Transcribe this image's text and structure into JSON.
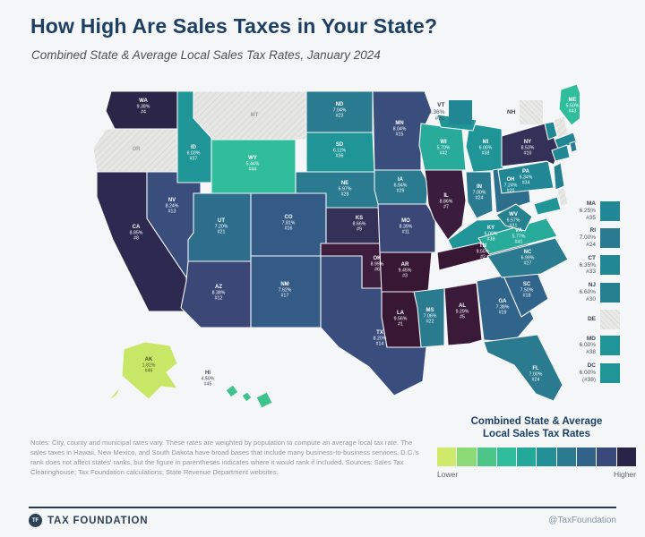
{
  "header": {
    "title": "How High Are Sales Taxes in Your State?",
    "subtitle": "Combined State & Average Local Sales Tax Rates, January 2024"
  },
  "map": {
    "states": [
      {
        "abbr": "WA",
        "rate": "9.38%",
        "rank": "#4",
        "fill": "#2b2547"
      },
      {
        "abbr": "OR",
        "rate": "",
        "rank": "",
        "fill": "",
        "no_tax": true
      },
      {
        "abbr": "CA",
        "rate": "8.85%",
        "rank": "#8",
        "fill": "#2e2950"
      },
      {
        "abbr": "NV",
        "rate": "8.24%",
        "rank": "#13",
        "fill": "#3a4e7e"
      },
      {
        "abbr": "ID",
        "rate": "6.03%",
        "rank": "#37",
        "fill": "#1f9597"
      },
      {
        "abbr": "MT",
        "rate": "",
        "rank": "",
        "fill": "",
        "no_tax": true
      },
      {
        "abbr": "WY",
        "rate": "5.44%",
        "rank": "#44",
        "fill": "#2fbd9c"
      },
      {
        "abbr": "UT",
        "rate": "7.20%",
        "rank": "#21",
        "fill": "#2e6e8d"
      },
      {
        "abbr": "CO",
        "rate": "7.81%",
        "rank": "#16",
        "fill": "#345a86"
      },
      {
        "abbr": "AZ",
        "rate": "8.38%",
        "rank": "#12",
        "fill": "#3b4877"
      },
      {
        "abbr": "NM",
        "rate": "7.62%",
        "rank": "#17",
        "fill": "#345a86"
      },
      {
        "abbr": "ND",
        "rate": "7.04%",
        "rank": "#23",
        "fill": "#2a7a90"
      },
      {
        "abbr": "SD",
        "rate": "6.11%",
        "rank": "#36",
        "fill": "#1f9597"
      },
      {
        "abbr": "NE",
        "rate": "6.97%",
        "rank": "#28",
        "fill": "#2a7a90"
      },
      {
        "abbr": "KS",
        "rate": "8.66%",
        "rank": "#9",
        "fill": "#343158"
      },
      {
        "abbr": "OK",
        "rate": "8.99%",
        "rank": "#6",
        "fill": "#3d1c3d"
      },
      {
        "abbr": "TX",
        "rate": "8.20%",
        "rank": "#14",
        "fill": "#3a4e7e"
      },
      {
        "abbr": "MN",
        "rate": "8.04%",
        "rank": "#15",
        "fill": "#3a4e7e"
      },
      {
        "abbr": "IA",
        "rate": "6.94%",
        "rank": "#29",
        "fill": "#2a7a90"
      },
      {
        "abbr": "MO",
        "rate": "8.39%",
        "rank": "#11",
        "fill": "#3b4877"
      },
      {
        "abbr": "AR",
        "rate": "9.45%",
        "rank": "#3",
        "fill": "#371733"
      },
      {
        "abbr": "LA",
        "rate": "9.56%",
        "rank": "#1",
        "fill": "#371733"
      },
      {
        "abbr": "WI",
        "rate": "5.70%",
        "rank": "#42",
        "fill": "#28ab9a"
      },
      {
        "abbr": "IL",
        "rate": "8.86%",
        "rank": "#7",
        "fill": "#3a1d3e"
      },
      {
        "abbr": "MI",
        "rate": "6.00%",
        "rank": "#38",
        "fill": "#1f9597"
      },
      {
        "abbr": "IN",
        "rate": "7.00%",
        "rank": "#24",
        "fill": "#2a7a90"
      },
      {
        "abbr": "OH",
        "rate": "7.24%",
        "rank": "#20",
        "fill": "#2e6e8d"
      },
      {
        "abbr": "KY",
        "rate": "6.00%",
        "rank": "#38",
        "fill": "#1f9597"
      },
      {
        "abbr": "TN",
        "rate": "9.55%",
        "rank": "#2",
        "fill": "#371733"
      },
      {
        "abbr": "MS",
        "rate": "7.06%",
        "rank": "#22",
        "fill": "#2a7a90"
      },
      {
        "abbr": "AL",
        "rate": "9.29%",
        "rank": "#5",
        "fill": "#3a1a38"
      },
      {
        "abbr": "GA",
        "rate": "7.38%",
        "rank": "#19",
        "fill": "#30648a"
      },
      {
        "abbr": "FL",
        "rate": "7.00%",
        "rank": "#24",
        "fill": "#2a7a90"
      },
      {
        "abbr": "SC",
        "rate": "7.50%",
        "rank": "#18",
        "fill": "#30648a"
      },
      {
        "abbr": "NC",
        "rate": "6.99%",
        "rank": "#27",
        "fill": "#2a7a90"
      },
      {
        "abbr": "VA",
        "rate": "5.77%",
        "rank": "#41",
        "fill": "#28ab9a"
      },
      {
        "abbr": "WV",
        "rate": "6.57%",
        "rank": "#31",
        "fill": "#25808f"
      },
      {
        "abbr": "PA",
        "rate": "6.34%",
        "rank": "#34",
        "fill": "#228795"
      },
      {
        "abbr": "NY",
        "rate": "8.53%",
        "rank": "#10",
        "fill": "#343158"
      },
      {
        "abbr": "ME",
        "rate": "5.50%",
        "rank": "#43",
        "fill": "#2fbd9c"
      },
      {
        "abbr": "AK",
        "rate": "1.82%",
        "rank": "#46",
        "fill": "#c9e767",
        "label_color": "#47542b"
      },
      {
        "abbr": "HI",
        "rate": "4.50%",
        "rank": "#45",
        "fill": "#3ec28e",
        "label_color": "#3f4c59"
      }
    ],
    "slivers": [
      {
        "abbr": "VT",
        "fill": "#228795"
      },
      {
        "abbr": "NH",
        "fill": "",
        "no_tax": true
      },
      {
        "abbr": "MA",
        "fill": "#228795"
      },
      {
        "abbr": "RI",
        "fill": "#2a7a90"
      },
      {
        "abbr": "CT",
        "fill": "#228795"
      },
      {
        "abbr": "NJ",
        "fill": "#25808f"
      },
      {
        "abbr": "DE",
        "fill": "",
        "no_tax": true
      },
      {
        "abbr": "MD",
        "fill": "#1f9597"
      }
    ]
  },
  "callouts": {
    "top": [
      {
        "abbr": "VT",
        "rate": "6.36%",
        "rank": "#32",
        "fill": "#228795"
      },
      {
        "abbr": "NH",
        "rate": "",
        "rank": "",
        "fill": "",
        "no_tax": true
      }
    ],
    "right": [
      {
        "abbr": "MA",
        "rate": "6.25%",
        "rank": "#35",
        "fill": "#228795"
      },
      {
        "abbr": "RI",
        "rate": "7.00%",
        "rank": "#24",
        "fill": "#2a7a90"
      },
      {
        "abbr": "CT",
        "rate": "6.35%",
        "rank": "#33",
        "fill": "#228795"
      },
      {
        "abbr": "NJ",
        "rate": "6.60%",
        "rank": "#30",
        "fill": "#25808f"
      },
      {
        "abbr": "DE",
        "rate": "",
        "rank": "",
        "fill": "",
        "no_tax": true
      },
      {
        "abbr": "MD",
        "rate": "6.00%",
        "rank": "#38",
        "fill": "#1f9597"
      },
      {
        "abbr": "DC",
        "rate": "6.00%",
        "rank": "(#38)",
        "fill": "#1f9597"
      }
    ]
  },
  "legend": {
    "title_line1": "Combined State & Average",
    "title_line2": "Local Sales Tax Rates",
    "lower": "Lower",
    "higher": "Higher",
    "colors": [
      "#cfe96b",
      "#8cd977",
      "#4cc687",
      "#2fbd9c",
      "#23a89a",
      "#218f95",
      "#2a7a90",
      "#31638a",
      "#39497a",
      "#2a2348"
    ]
  },
  "notes": "Notes: City, county and municipal rates vary. These rates are weighted by population to compute an average local tax rate. The sales taxes in Hawaii, New Mexico, and South Dakota have broad bases that include many business-to-business services. D.C.'s rank does not affect states' ranks, but the figure in parentheses indicates where it would rank if included. Sources: Sales Tax Clearinghouse; Tax Foundation calculations; State Revenue Department websites.",
  "footer": {
    "brand": "TAX FOUNDATION",
    "social": "@TaxFoundation"
  },
  "colors": {
    "background": "#f5f6f7",
    "no_tax_fill": "#e6e6e4",
    "accent_dark": "#1c3f63"
  },
  "chart_data": {
    "type": "heatmap",
    "title": "How High Are Sales Taxes in Your State?",
    "subtitle": "Combined State & Average Local Sales Tax Rates, January 2024",
    "legend_position": "bottom-right",
    "legend_scale": [
      "Lower",
      "Higher"
    ],
    "categories": [
      "WA",
      "OR",
      "CA",
      "NV",
      "ID",
      "MT",
      "WY",
      "UT",
      "CO",
      "AZ",
      "NM",
      "ND",
      "SD",
      "NE",
      "KS",
      "OK",
      "TX",
      "MN",
      "IA",
      "MO",
      "AR",
      "LA",
      "WI",
      "IL",
      "MI",
      "IN",
      "OH",
      "KY",
      "TN",
      "MS",
      "AL",
      "GA",
      "FL",
      "SC",
      "NC",
      "VA",
      "WV",
      "PA",
      "NY",
      "VT",
      "NH",
      "ME",
      "MA",
      "RI",
      "CT",
      "NJ",
      "DE",
      "MD",
      "DC",
      "AK",
      "HI"
    ],
    "values": [
      9.38,
      0,
      8.85,
      8.24,
      6.03,
      0,
      5.44,
      7.2,
      7.81,
      8.38,
      7.62,
      7.04,
      6.11,
      6.97,
      8.66,
      8.99,
      8.2,
      8.04,
      6.94,
      8.39,
      9.45,
      9.56,
      5.7,
      8.86,
      6.0,
      7.0,
      7.24,
      6.0,
      9.55,
      7.06,
      9.29,
      7.38,
      7.0,
      7.5,
      6.99,
      5.77,
      6.57,
      6.34,
      8.53,
      6.36,
      0,
      5.5,
      6.25,
      7.0,
      6.35,
      6.6,
      0,
      6.0,
      6.0,
      1.82,
      4.5
    ],
    "ranks": [
      4,
      null,
      8,
      13,
      37,
      null,
      44,
      21,
      16,
      12,
      17,
      23,
      36,
      28,
      9,
      6,
      14,
      15,
      29,
      11,
      3,
      1,
      42,
      7,
      38,
      24,
      20,
      38,
      2,
      22,
      5,
      19,
      24,
      18,
      27,
      41,
      31,
      34,
      10,
      32,
      null,
      43,
      35,
      24,
      33,
      30,
      null,
      38,
      38,
      46,
      45
    ]
  }
}
